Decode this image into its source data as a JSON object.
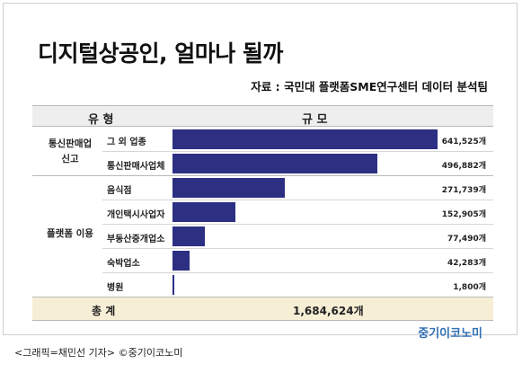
{
  "title": "디지털상공인, 얼마나 될까",
  "source": "자료 : 국민대 플랫폼SME연구센터 데이터 분석팀",
  "header": {
    "type_label": "유 형",
    "scale_label": "규 모"
  },
  "groups": [
    {
      "label_line1": "통신판매업",
      "label_line2": "신고"
    },
    {
      "label_line1": "플랫폼 이용",
      "label_line2": ""
    }
  ],
  "chart_data": {
    "type": "bar",
    "orientation": "horizontal",
    "categories": [
      "그 외 업종",
      "통신판매사업체",
      "음식점",
      "개인택시사업자",
      "부동산중개업소",
      "숙박업소",
      "병원"
    ],
    "values": [
      641525,
      496882,
      271739,
      152905,
      77490,
      42283,
      1800
    ],
    "value_labels": [
      "641,525개",
      "496,882개",
      "271,739개",
      "152,905개",
      "77,490개",
      "42,283개",
      "1,800개"
    ],
    "groups": [
      "통신판매업 신고",
      "통신판매업 신고",
      "플랫폼 이용",
      "플랫폼 이용",
      "플랫폼 이용",
      "플랫폼 이용",
      "플랫폼 이용"
    ],
    "bar_color": "#2d2f83"
  },
  "total": {
    "label": "총 계",
    "value": "1,684,624개"
  },
  "logo": "중기이코노미",
  "caption": "<그래픽=채민선 기자>  ©중기이코노미",
  "colors": {
    "bar": "#2d2f83",
    "header_bg": "#eeeeee",
    "total_bg": "#f7eed6",
    "logo": "#2f6fb5"
  }
}
